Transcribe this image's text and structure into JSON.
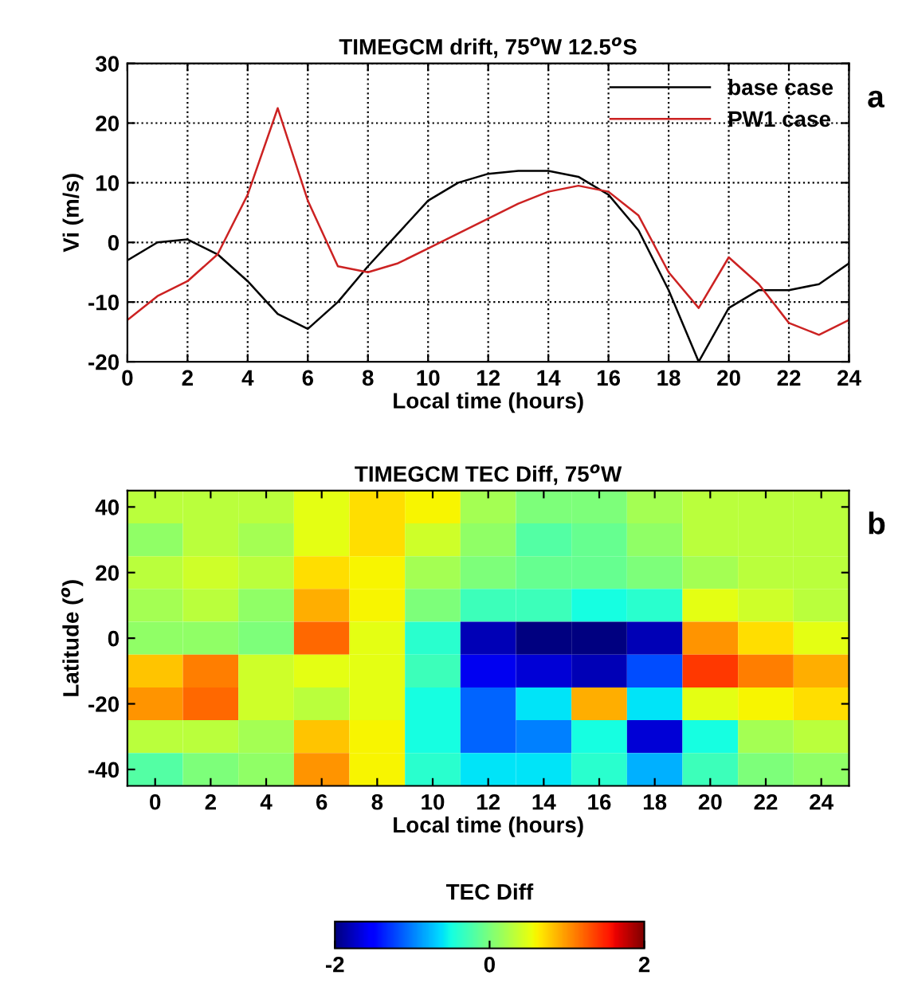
{
  "chart_data": [
    {
      "type": "line",
      "title": "TIMEGCM drift, 75$^{o}$W 12.5$^{o}$S",
      "xlabel": "Local time (hours)",
      "ylabel": "Vi (m/s)",
      "x": [
        0,
        1,
        2,
        3,
        4,
        5,
        6,
        7,
        8,
        9,
        10,
        11,
        12,
        13,
        14,
        15,
        16,
        17,
        18,
        19,
        20,
        21,
        22,
        23,
        24
      ],
      "series": [
        {
          "name": "base case",
          "color": "#000000",
          "values": [
            -3,
            0,
            0.5,
            -2,
            -6.5,
            -12,
            -14.5,
            -10,
            -4,
            1.5,
            7,
            10,
            11.5,
            12,
            12,
            11,
            8,
            2,
            -8,
            -20,
            -11,
            -8,
            -8,
            -7,
            -3.5
          ]
        },
        {
          "name": "PW1 case",
          "color": "#cc2222",
          "values": [
            -13,
            -9,
            -6.5,
            -2,
            8,
            22.5,
            7,
            -4,
            -5,
            -3.5,
            -1,
            1.5,
            4,
            6.5,
            8.5,
            9.5,
            8.5,
            4.5,
            -5,
            -11,
            -2.5,
            -7,
            -13.5,
            -15.5,
            -13
          ]
        }
      ],
      "xlim": [
        0,
        24
      ],
      "xticks": [
        0,
        2,
        4,
        6,
        8,
        10,
        12,
        14,
        16,
        18,
        20,
        22,
        24
      ],
      "ylim": [
        -20,
        30
      ],
      "yticks": [
        -20,
        -10,
        0,
        10,
        20,
        30
      ],
      "grid": true,
      "legend": "top right",
      "line_style": "solid",
      "marker": "none",
      "annotations": [
        "a"
      ]
    },
    {
      "type": "heatmap",
      "title": "TIMEGCM TEC Diff, 75$^{o}$W",
      "xlabel": "Local time (hours)",
      "ylabel": "Latitude ($^{o}$)",
      "clabel": "TEC Diff",
      "categories": [
        "0",
        "2",
        "4",
        "6",
        "8",
        "10",
        "12",
        "14",
        "16",
        "18",
        "20",
        "22",
        "24"
      ],
      "y_categories": [
        "40",
        null,
        "20",
        null,
        "0",
        null,
        "-20",
        null,
        "-40"
      ],
      "cells": [
        [
          0.3,
          0.3,
          0.3,
          0.5,
          0.7,
          0.6,
          0.2,
          0,
          0,
          0.2,
          0.3,
          0.3,
          0.3
        ],
        [
          0.1,
          0.3,
          0.2,
          0.5,
          0.7,
          0.4,
          0.1,
          -0.2,
          -0.1,
          0.1,
          0.3,
          0.3,
          0.3
        ],
        [
          0.3,
          0.4,
          0.3,
          0.7,
          0.6,
          0.2,
          0,
          -0.1,
          -0.1,
          0,
          0.2,
          0.3,
          0.3
        ],
        [
          0.2,
          0.3,
          0.1,
          0.9,
          0.6,
          0,
          -0.3,
          -0.3,
          -0.5,
          -0.4,
          0.5,
          0.4,
          0.3
        ],
        [
          0.1,
          0.1,
          0,
          1.2,
          0.5,
          -0.4,
          -1.8,
          -2,
          -2,
          -1.8,
          1,
          0.7,
          0.5
        ],
        [
          0.8,
          1.1,
          0.4,
          0.5,
          0.5,
          -0.3,
          -1.6,
          -1.7,
          -1.8,
          -1.2,
          1.4,
          1.1,
          0.9
        ],
        [
          1,
          1.2,
          0.4,
          0.3,
          0.5,
          -0.5,
          -1.1,
          -0.6,
          0.9,
          -0.6,
          0.5,
          0.6,
          0.7
        ],
        [
          0.3,
          0.3,
          0.2,
          0.8,
          0.6,
          -0.5,
          -1.1,
          -1,
          -0.5,
          -1.7,
          -0.5,
          0.2,
          0.3
        ],
        [
          -0.2,
          0,
          0.1,
          1,
          0.6,
          -0.4,
          -0.6,
          -0.6,
          -0.4,
          -0.8,
          -0.3,
          0,
          0.1
        ]
      ],
      "clim": [
        -2,
        2
      ],
      "cticks": [
        -2,
        0,
        2
      ],
      "annotations": [
        "b"
      ]
    }
  ]
}
